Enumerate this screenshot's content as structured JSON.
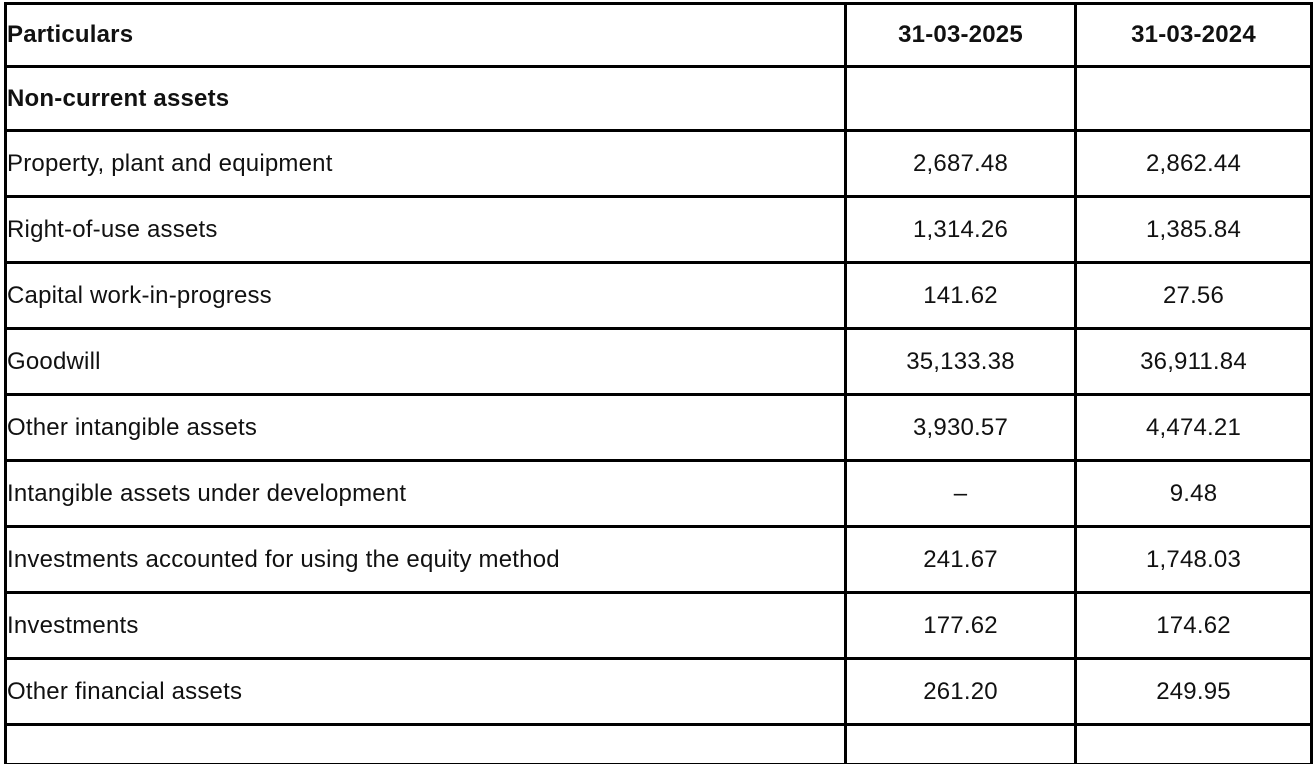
{
  "colors": {
    "text": "#111111",
    "border": "#000000",
    "background": "#ffffff"
  },
  "table": {
    "columns": {
      "particulars": "Particulars",
      "period_current": "31-03-2025",
      "period_prior": "31-03-2024"
    },
    "section": {
      "label": "Non-current assets",
      "v2025": "",
      "v2024": ""
    },
    "rows": [
      {
        "label": "Property, plant and equipment",
        "v2025": "2,687.48",
        "v2024": "2,862.44"
      },
      {
        "label": "Right-of-use assets",
        "v2025": "1,314.26",
        "v2024": "1,385.84"
      },
      {
        "label": "Capital work-in-progress",
        "v2025": "141.62",
        "v2024": "27.56"
      },
      {
        "label": "Goodwill",
        "v2025": "35,133.38",
        "v2024": "36,911.84"
      },
      {
        "label": "Other intangible assets",
        "v2025": "3,930.57",
        "v2024": "4,474.21"
      },
      {
        "label": "Intangible assets under development",
        "v2025": "–",
        "v2024": "9.48"
      },
      {
        "label": "Investments accounted for using the equity method",
        "v2025": "241.67",
        "v2024": "1,748.03"
      },
      {
        "label": "Investments",
        "v2025": "177.62",
        "v2024": "174.62"
      },
      {
        "label": "Other financial assets",
        "v2025": "261.20",
        "v2024": "249.95"
      }
    ]
  }
}
